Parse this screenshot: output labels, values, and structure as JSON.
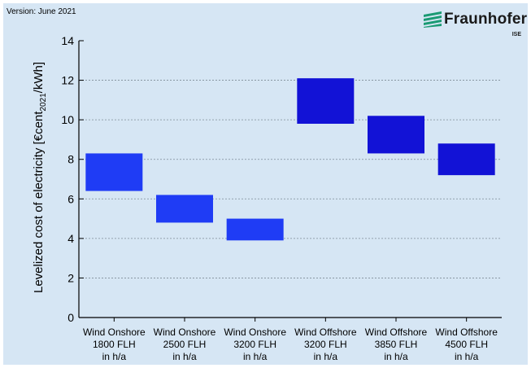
{
  "version_text": "Version: June 2021",
  "logo": {
    "name": "Fraunhofer",
    "sub": "ISE",
    "icon": "fraunhofer-logo-icon",
    "color": "#1a9a73"
  },
  "chart_data": {
    "type": "bar",
    "subtype": "floating-range",
    "ylabel_parts": [
      "Levelized cost of electricity [€cent",
      "2021",
      "/kWh]"
    ],
    "ylim": [
      0,
      14
    ],
    "yticks": [
      0,
      2,
      4,
      6,
      8,
      10,
      12,
      14
    ],
    "grid": "horizontal-dotted",
    "categories": [
      [
        "Wind Onshore",
        "1800 FLH",
        "in h/a"
      ],
      [
        "Wind Onshore",
        "2500 FLH",
        "in h/a"
      ],
      [
        "Wind Onshore",
        "3200 FLH",
        "in h/a"
      ],
      [
        "Wind Offshore",
        "3200 FLH",
        "in h/a"
      ],
      [
        "Wind Offshore",
        "3850 FLH",
        "in h/a"
      ],
      [
        "Wind Offshore",
        "4500 FLH",
        "in h/a"
      ]
    ],
    "ranges": [
      {
        "low": 6.4,
        "high": 8.3,
        "color": "#1f3cf5"
      },
      {
        "low": 4.8,
        "high": 6.2,
        "color": "#1f3cf5"
      },
      {
        "low": 3.9,
        "high": 5.0,
        "color": "#1f3cf5"
      },
      {
        "low": 9.8,
        "high": 12.1,
        "color": "#1212d6"
      },
      {
        "low": 8.3,
        "high": 10.2,
        "color": "#1212d6"
      },
      {
        "low": 7.2,
        "high": 8.8,
        "color": "#1212d6"
      }
    ]
  }
}
